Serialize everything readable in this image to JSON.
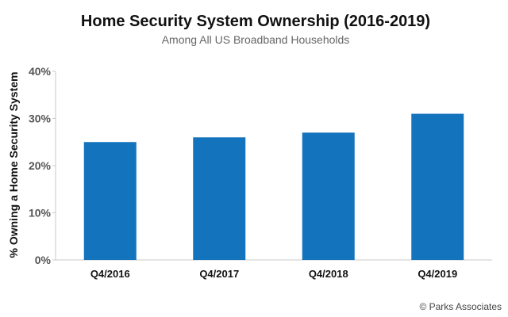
{
  "chart_data": {
    "type": "bar",
    "title": "Home Security System Ownership (2016-2019)",
    "subtitle": "Among All US Broadband Households",
    "xlabel": "",
    "ylabel": "% Owning a Home Security System",
    "categories": [
      "Q4/2016",
      "Q4/2017",
      "Q4/2018",
      "Q4/2019"
    ],
    "values": [
      25,
      26,
      27,
      31
    ],
    "ylim": [
      0,
      40
    ],
    "yticks": [
      0,
      10,
      20,
      30,
      40
    ],
    "ytick_labels": [
      "0%",
      "10%",
      "20%",
      "30%",
      "40%"
    ],
    "grid": false,
    "legend": "none",
    "colors": {
      "bar": "#1473BD",
      "axis": "#C8C8C8"
    }
  },
  "footer": {
    "copyright": "© Parks Associates"
  }
}
